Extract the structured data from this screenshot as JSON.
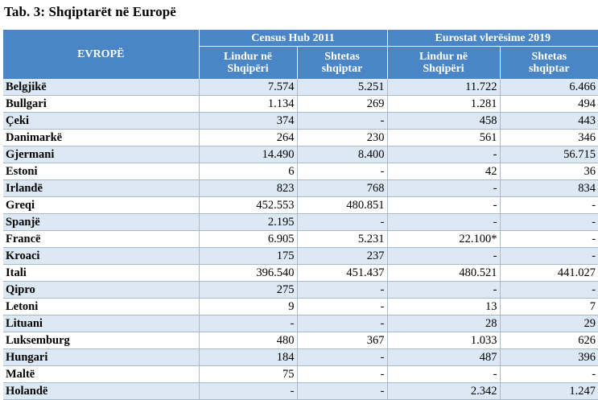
{
  "title": "Tab. 3: Shqiptarët në Europë",
  "header": {
    "region_label": "EVROPË",
    "group1": "Census Hub 2011",
    "group2": "Eurostat vlerësime 2019",
    "col1": [
      "Lindur në",
      "Shqipëri"
    ],
    "col2": [
      "Shtetas",
      "shqiptar"
    ],
    "col3": [
      "Lindur në",
      "Shqipëri"
    ],
    "col4": [
      "Shtetas",
      "shqiptar"
    ]
  },
  "rows": [
    {
      "country": "Belgjikë",
      "v": [
        "7.574",
        "5.251",
        "11.722",
        "6.466"
      ]
    },
    {
      "country": "Bullgari",
      "v": [
        "1.134",
        "269",
        "1.281",
        "494"
      ]
    },
    {
      "country": "Çeki",
      "v": [
        "374",
        "-",
        "458",
        "443"
      ]
    },
    {
      "country": "Danimarkë",
      "v": [
        "264",
        "230",
        "561",
        "346"
      ]
    },
    {
      "country": "Gjermani",
      "v": [
        "14.490",
        "8.400",
        "-",
        "56.715"
      ]
    },
    {
      "country": "Estoni",
      "v": [
        "6",
        "-",
        "42",
        "36"
      ]
    },
    {
      "country": "Irlandë",
      "v": [
        "823",
        "768",
        "-",
        "834"
      ]
    },
    {
      "country": "Greqi",
      "v": [
        "452.553",
        "480.851",
        "-",
        "-"
      ]
    },
    {
      "country": "Spanjë",
      "v": [
        "2.195",
        "-",
        "-",
        "-"
      ]
    },
    {
      "country": "Francë",
      "v": [
        "6.905",
        "5.231",
        "22.100*",
        "-"
      ]
    },
    {
      "country": "Kroaci",
      "v": [
        "175",
        "237",
        "-",
        "-"
      ]
    },
    {
      "country": "Itali",
      "v": [
        "396.540",
        "451.437",
        "480.521",
        "441.027"
      ]
    },
    {
      "country": "Qipro",
      "v": [
        "275",
        "-",
        "-",
        "-"
      ]
    },
    {
      "country": "Letoni",
      "v": [
        "9",
        "-",
        "13",
        "7"
      ]
    },
    {
      "country": "Lituani",
      "v": [
        "-",
        "-",
        "28",
        "29"
      ]
    },
    {
      "country": "Luksemburg",
      "v": [
        "480",
        "367",
        "1.033",
        "626"
      ]
    },
    {
      "country": "Hungari",
      "v": [
        "184",
        "-",
        "487",
        "396"
      ]
    },
    {
      "country": "Maltë",
      "v": [
        "75",
        "-",
        "-",
        "-"
      ]
    },
    {
      "country": "Holandë",
      "v": [
        "-",
        "-",
        "2.342",
        "1.247"
      ]
    }
  ]
}
